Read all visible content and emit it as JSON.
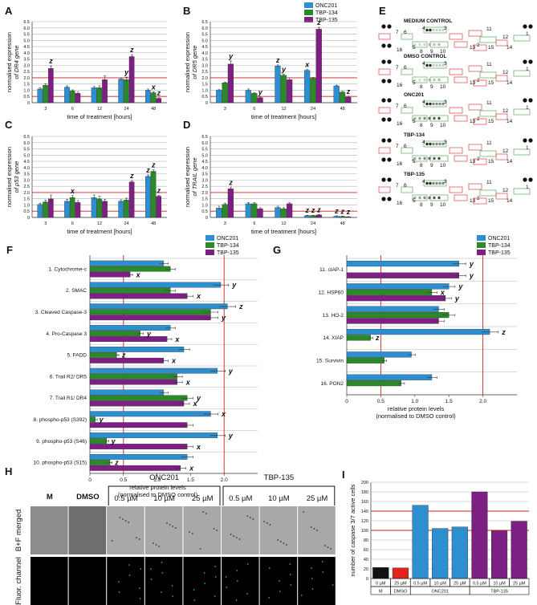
{
  "colors": {
    "ONC201": "#2e8fd0",
    "TBP-134": "#2a8a2a",
    "TBP-135": "#7d1f83",
    "M": "#111111",
    "DMSO": "#e3231d",
    "redline": "#d42020",
    "grid": "#b5b5b5",
    "errbar": "#333333"
  },
  "legend": [
    "ONC201",
    "TBP-134",
    "TBP-135"
  ],
  "panel_letters": {
    "A": "A",
    "B": "B",
    "C": "C",
    "D": "D",
    "E": "E",
    "F": "F",
    "G": "G",
    "H": "H",
    "I": "I"
  },
  "time_axis": {
    "label": "time of treatment [hours]",
    "categories": [
      "3",
      "6",
      "12",
      "24",
      "48"
    ],
    "yticks": [
      "0",
      "0.5",
      "1.0",
      "1.5",
      "2.0",
      "2.5",
      "3.0",
      "3.5",
      "4.0",
      "4.5",
      "5.0",
      "5.5",
      "6.0",
      "6.5"
    ]
  },
  "chart_data": [
    {
      "panel": "A",
      "type": "bar",
      "ylabel": [
        "normalised expression",
        "of DR4 gene"
      ],
      "xlabel": "time of treatment [hours]",
      "ylim": [
        0,
        6.5
      ],
      "redlines": [
        0.5,
        2.0
      ],
      "categories": [
        "3",
        "6",
        "12",
        "24",
        "48"
      ],
      "series": [
        {
          "name": "ONC201",
          "values": [
            1.1,
            1.25,
            1.2,
            1.9,
            1.0
          ],
          "err": [
            0.08,
            0.1,
            0.1,
            0.1,
            0.1
          ]
        },
        {
          "name": "TBP-134",
          "values": [
            1.4,
            0.95,
            1.2,
            1.85,
            0.8
          ],
          "err": [
            0.12,
            0.08,
            0.15,
            0.2,
            0.08
          ]
        },
        {
          "name": "TBP-135",
          "values": [
            2.75,
            0.75,
            1.85,
            3.7,
            0.35
          ],
          "err": [
            0.2,
            0.1,
            0.3,
            0.15,
            0.05
          ]
        }
      ],
      "sig": [
        {
          "cat": 0,
          "s": 2,
          "t": "z"
        },
        {
          "cat": 3,
          "s": 1,
          "t": "y"
        },
        {
          "cat": 3,
          "s": 2,
          "t": "z"
        },
        {
          "cat": 4,
          "s": 1,
          "t": "x"
        },
        {
          "cat": 4,
          "s": 2,
          "t": "z"
        }
      ]
    },
    {
      "panel": "B",
      "type": "bar",
      "ylabel": [
        "normalised expression",
        "of DR5 gene"
      ],
      "xlabel": "time of treatment [hours]",
      "ylim": [
        0,
        6.5
      ],
      "redlines": [
        0.5,
        2.0
      ],
      "categories": [
        "3",
        "6",
        "12",
        "24",
        "48"
      ],
      "series": [
        {
          "name": "ONC201",
          "values": [
            1.0,
            1.0,
            2.95,
            2.6,
            1.35
          ],
          "err": [
            0.05,
            0.1,
            0.08,
            0.06,
            0.06
          ]
        },
        {
          "name": "TBP-134",
          "values": [
            1.6,
            0.75,
            2.2,
            1.95,
            0.85
          ],
          "err": [
            0.06,
            0.06,
            0.08,
            0.08,
            0.06
          ]
        },
        {
          "name": "TBP-135",
          "values": [
            3.1,
            0.4,
            1.85,
            5.9,
            0.45
          ],
          "err": [
            0.25,
            0.05,
            0.15,
            0.15,
            0.05
          ]
        }
      ],
      "sig": [
        {
          "cat": 0,
          "s": 2,
          "t": "y"
        },
        {
          "cat": 1,
          "s": 2,
          "t": "y"
        },
        {
          "cat": 2,
          "s": 0,
          "t": "z"
        },
        {
          "cat": 2,
          "s": 1,
          "t": "y"
        },
        {
          "cat": 3,
          "s": 0,
          "t": "x"
        },
        {
          "cat": 3,
          "s": 2,
          "t": "z"
        },
        {
          "cat": 4,
          "s": 2,
          "t": "z"
        }
      ]
    },
    {
      "panel": "C",
      "type": "bar",
      "ylabel": [
        "normalised expression",
        "of p53 gene"
      ],
      "xlabel": "time of treatment [hours]",
      "ylim": [
        0,
        6.5
      ],
      "redlines": [
        0.5,
        2.0
      ],
      "categories": [
        "3",
        "6",
        "12",
        "24",
        "48"
      ],
      "series": [
        {
          "name": "ONC201",
          "values": [
            1.05,
            1.3,
            1.6,
            1.3,
            3.3
          ],
          "err": [
            0.1,
            0.15,
            0.2,
            0.12,
            0.12
          ]
        },
        {
          "name": "TBP-134",
          "values": [
            1.25,
            1.6,
            1.5,
            1.4,
            3.7
          ],
          "err": [
            0.15,
            0.15,
            0.2,
            0.15,
            0.12
          ]
        },
        {
          "name": "TBP-135",
          "values": [
            1.5,
            1.2,
            1.3,
            2.85,
            1.7
          ],
          "err": [
            0.3,
            0.15,
            0.15,
            0.1,
            0.08
          ]
        }
      ],
      "sig": [
        {
          "cat": 1,
          "s": 1,
          "t": "x"
        },
        {
          "cat": 3,
          "s": 2,
          "t": "z"
        },
        {
          "cat": 4,
          "s": 0,
          "t": "z"
        },
        {
          "cat": 4,
          "s": 1,
          "t": "z"
        },
        {
          "cat": 4,
          "s": 2,
          "t": "z"
        }
      ]
    },
    {
      "panel": "D",
      "type": "bar",
      "ylabel": [
        "normalised expression",
        "of TRAIL gene"
      ],
      "xlabel": "time of treatment [hours]",
      "ylim": [
        0,
        6.5
      ],
      "redlines": [
        0.5,
        2.0
      ],
      "categories": [
        "3",
        "6",
        "12",
        "24",
        "48"
      ],
      "series": [
        {
          "name": "ONC201",
          "values": [
            0.75,
            1.1,
            0.8,
            0.15,
            0.1
          ],
          "err": [
            0.15,
            0.1,
            0.1,
            0.03,
            0.03
          ]
        },
        {
          "name": "TBP-134",
          "values": [
            1.05,
            1.1,
            0.7,
            0.15,
            0.08
          ],
          "err": [
            0.1,
            0.1,
            0.08,
            0.03,
            0.03
          ]
        },
        {
          "name": "TBP-135",
          "values": [
            2.3,
            0.7,
            1.1,
            0.2,
            0.05
          ],
          "err": [
            0.1,
            0.08,
            0.08,
            0.03,
            0.02
          ]
        }
      ],
      "sig": [
        {
          "cat": 0,
          "s": 2,
          "t": "z"
        },
        {
          "cat": 3,
          "s": 0,
          "t": "z"
        },
        {
          "cat": 3,
          "s": 1,
          "t": "z"
        },
        {
          "cat": 3,
          "s": 2,
          "t": "z"
        },
        {
          "cat": 4,
          "s": 0,
          "t": "z"
        },
        {
          "cat": 4,
          "s": 1,
          "t": "z"
        },
        {
          "cat": 4,
          "s": 2,
          "t": "z"
        }
      ]
    },
    {
      "panel": "F",
      "type": "hbar",
      "xlabel": [
        "relative protein levels",
        "(normalised to DMSO control)"
      ],
      "xlim": [
        0,
        2.5
      ],
      "xticks": [
        "0",
        "0.5",
        "1.0",
        "1.5",
        "2.0"
      ],
      "redlines": [
        0.5,
        2.0
      ],
      "categories": [
        "1. Cytochrome-c",
        "2. SMAC",
        "3. Cleaved Caspase-3",
        "4. Pro-Caspase 3",
        "5. FADD",
        "6. Trail R2/ DR5",
        "7. Trail R1/ DR4",
        "8. phospho-p53 (S392)",
        "9. phospho-p53 (S46)",
        "10. phospho-p53 (S15)"
      ],
      "series": [
        {
          "name": "ONC201",
          "values": [
            1.1,
            1.95,
            2.05,
            1.2,
            1.4,
            1.9,
            1.1,
            1.8,
            1.9,
            1.45
          ]
        },
        {
          "name": "TBP-134",
          "values": [
            1.2,
            1.2,
            1.8,
            0.75,
            0.4,
            1.3,
            1.45,
            0.08,
            0.25,
            0.3
          ]
        },
        {
          "name": "TBP-135",
          "values": [
            0.6,
            1.45,
            1.8,
            1.15,
            1.1,
            1.3,
            1.4,
            1.45,
            1.45,
            1.35
          ]
        }
      ],
      "sig": [
        {
          "cat": 0,
          "s": 2,
          "t": "x"
        },
        {
          "cat": 1,
          "s": 0,
          "t": "y"
        },
        {
          "cat": 1,
          "s": 2,
          "t": "x"
        },
        {
          "cat": 2,
          "s": 0,
          "t": "z"
        },
        {
          "cat": 2,
          "s": 2,
          "t": "y"
        },
        {
          "cat": 3,
          "s": 1,
          "t": "y"
        },
        {
          "cat": 3,
          "s": 2,
          "t": "x"
        },
        {
          "cat": 4,
          "s": 1,
          "t": "z"
        },
        {
          "cat": 4,
          "s": 2,
          "t": "x"
        },
        {
          "cat": 5,
          "s": 0,
          "t": "y"
        },
        {
          "cat": 5,
          "s": 2,
          "t": "x"
        },
        {
          "cat": 6,
          "s": 1,
          "t": "y"
        },
        {
          "cat": 6,
          "s": 2,
          "t": "x"
        },
        {
          "cat": 7,
          "s": 0,
          "t": "x"
        },
        {
          "cat": 7,
          "s": 1,
          "t": "y"
        },
        {
          "cat": 8,
          "s": 0,
          "t": "y"
        },
        {
          "cat": 8,
          "s": 1,
          "t": "y"
        },
        {
          "cat": 8,
          "s": 2,
          "t": "x"
        },
        {
          "cat": 9,
          "s": 1,
          "t": "z"
        },
        {
          "cat": 9,
          "s": 2,
          "t": "x"
        }
      ]
    },
    {
      "panel": "G",
      "type": "hbar",
      "xlabel": [
        "relative protein levels",
        "(normalised to DMSO control)"
      ],
      "xlim": [
        0,
        2.5
      ],
      "xticks": [
        "0",
        "0.5",
        "1.0",
        "1.5",
        "2.0"
      ],
      "redlines": [
        0.5,
        2.0
      ],
      "categories": [
        "11. cIAP-1",
        "12. HSP60",
        "13. HO-2",
        "14. XIAP",
        "15. Survivin",
        "16. PON2"
      ],
      "series": [
        {
          "name": "ONC201",
          "values": [
            1.65,
            1.5,
            1.35,
            2.1,
            0.95,
            1.25
          ]
        },
        {
          "name": "TBP-134",
          "values": [
            0,
            1.25,
            1.5,
            0.35,
            0.55,
            0.8
          ]
        },
        {
          "name": "TBP-135",
          "values": [
            1.65,
            1.45,
            1.35,
            0,
            0,
            0
          ]
        }
      ],
      "sig": [
        {
          "cat": 0,
          "s": 0,
          "t": "y"
        },
        {
          "cat": 0,
          "s": 2,
          "t": "y"
        },
        {
          "cat": 1,
          "s": 0,
          "t": "y"
        },
        {
          "cat": 1,
          "s": 1,
          "t": "x"
        },
        {
          "cat": 1,
          "s": 2,
          "t": "y"
        },
        {
          "cat": 3,
          "s": 0,
          "t": "z"
        },
        {
          "cat": 3,
          "s": 1,
          "t": "z"
        }
      ]
    },
    {
      "panel": "I",
      "type": "bar",
      "ylabel": [
        "number of caspase 3/7 active cells"
      ],
      "ylim": [
        0,
        200
      ],
      "yticks": [
        "0",
        "20",
        "40",
        "60",
        "80",
        "100",
        "120",
        "140",
        "160",
        "180",
        "200"
      ],
      "redlines": [
        100,
        140
      ],
      "bars": [
        {
          "label": "0 µM",
          "group": "M",
          "value": 23,
          "color": "M"
        },
        {
          "label": "25 µM",
          "group": "DMSO",
          "value": 22,
          "color": "DMSO"
        },
        {
          "label": "0.5 µM",
          "group": "ONC201",
          "value": 152,
          "color": "ONC201"
        },
        {
          "label": "10 µM",
          "group": "ONC201",
          "value": 104,
          "color": "ONC201"
        },
        {
          "label": "25 µM",
          "group": "ONC201",
          "value": 107,
          "color": "ONC201"
        },
        {
          "label": "0.5 µM",
          "group": "TBP-135",
          "value": 180,
          "color": "TBP-135"
        },
        {
          "label": "10 µM",
          "group": "TBP-135",
          "value": 99,
          "color": "TBP-135"
        },
        {
          "label": "25 µM",
          "group": "TBP-135",
          "value": 119,
          "color": "TBP-135"
        }
      ],
      "groups": [
        "M",
        "DMSO",
        "ONC201",
        "TBP-135"
      ]
    }
  ],
  "arrayE": {
    "blocks": [
      "MEDIUM CONTROL",
      "DMSO CONTROL",
      "ONC201",
      "TBP-134",
      "TBP-135"
    ],
    "numbers": [
      "1",
      "2",
      "3",
      "4",
      "5",
      "6",
      "7",
      "8",
      "9",
      "10",
      "11",
      "12",
      "13",
      "14",
      "15",
      "16"
    ]
  },
  "micrographs": {
    "groups": [
      "ONC201",
      "TBP-135"
    ],
    "columns": [
      "M",
      "DMSO",
      "0.5 µM",
      "10 µM",
      "25 µM",
      "0.5 µM",
      "10 µM",
      "25 µM"
    ],
    "rows": [
      "B+F merged",
      "Fluor. channel"
    ]
  }
}
